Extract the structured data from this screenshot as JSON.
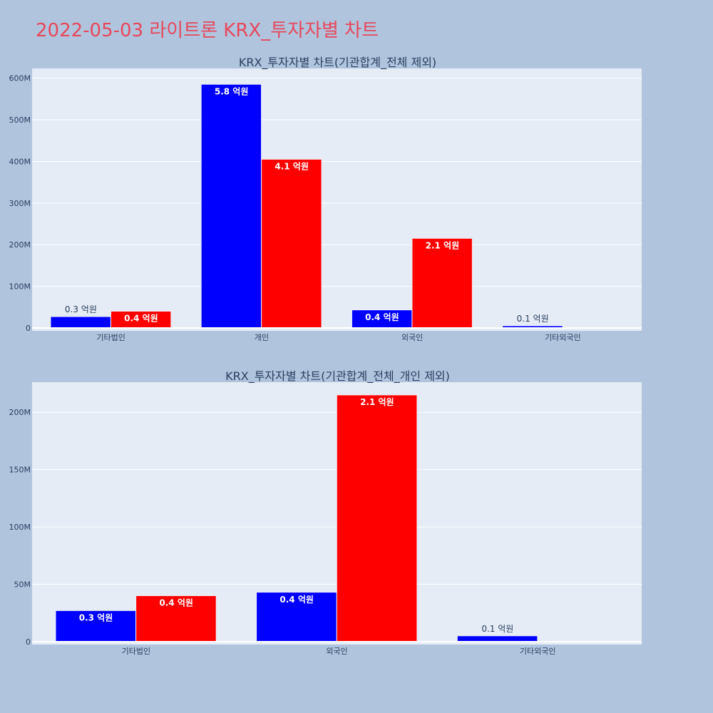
{
  "page": {
    "title": "2022-05-03 라이트론 KRX_투자자별 차트"
  },
  "colors": {
    "background": "#b0c4de",
    "plot_bg": "#e5ecf6",
    "title": "#e8475a",
    "series_a": "#0000ff",
    "series_b": "#ff0000"
  },
  "chart_data": [
    {
      "type": "bar",
      "title": "KRX_투자자별 차트(기관합계_전체 제외)",
      "categories": [
        "기타법인",
        "개인",
        "외국인",
        "기타외국인"
      ],
      "series": [
        {
          "values": [
            27000000,
            585000000,
            43000000,
            5000000
          ],
          "labels": [
            "0.3 억원",
            "5.8 억원",
            "0.4 억원",
            "0.1 억원"
          ]
        },
        {
          "values": [
            40000000,
            405000000,
            215000000,
            null
          ],
          "labels": [
            "0.4 억원",
            "4.1 억원",
            "2.1 억원",
            ""
          ]
        }
      ],
      "ylim": [
        0,
        620000000
      ],
      "yticks": [
        0,
        100000000,
        200000000,
        300000000,
        400000000,
        500000000,
        600000000
      ],
      "ytick_labels": [
        "0",
        "100M",
        "200M",
        "300M",
        "400M",
        "500M",
        "600M"
      ],
      "grid": true
    },
    {
      "type": "bar",
      "title": "KRX_투자자별 차트(기관합계_전체_개인 제외)",
      "categories": [
        "기타법인",
        "외국인",
        "기타외국인"
      ],
      "series": [
        {
          "values": [
            27000000,
            43000000,
            5000000
          ],
          "labels": [
            "0.3 억원",
            "0.4 억원",
            "0.1 억원"
          ]
        },
        {
          "values": [
            40000000,
            215000000,
            null
          ],
          "labels": [
            "0.4 억원",
            "2.1 억원",
            ""
          ]
        }
      ],
      "ylim": [
        0,
        225000000
      ],
      "yticks": [
        0,
        50000000,
        100000000,
        150000000,
        200000000
      ],
      "ytick_labels": [
        "0",
        "50M",
        "100M",
        "150M",
        "200M"
      ],
      "grid": true
    }
  ]
}
